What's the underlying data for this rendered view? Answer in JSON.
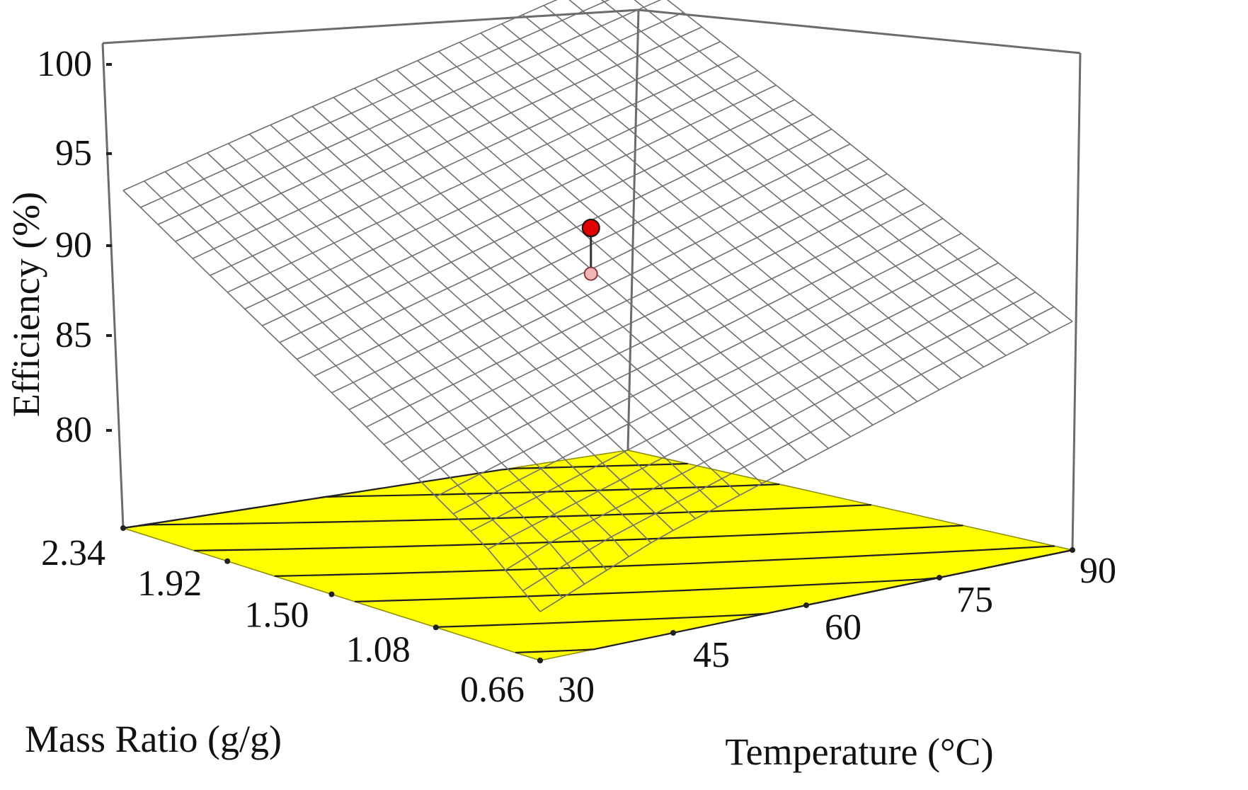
{
  "chart_data": {
    "type": "surface",
    "zlabel": "Efficiency (%)",
    "xlabel": "Temperature (°C)",
    "ylabel": "Mass Ratio (g/g)",
    "xlim": [
      30,
      90
    ],
    "ylim": [
      0.66,
      2.34
    ],
    "zlim": [
      80,
      100
    ],
    "x_ticks": [
      "30",
      "45",
      "60",
      "75",
      "90"
    ],
    "y_ticks": [
      "0.66",
      "1.08",
      "1.50",
      "1.92",
      "2.34"
    ],
    "z_ticks": [
      "80",
      "85",
      "90",
      "95",
      "100"
    ],
    "surface_corners": {
      "temperature_30_mass_ratio_0.66": 78,
      "temperature_30_mass_ratio_2.34": 93,
      "temperature_90_mass_ratio_0.66": 87,
      "temperature_90_mass_ratio_2.34": 101
    },
    "design_point": {
      "temperature": 60,
      "mass_ratio": 1.5,
      "predicted": 92,
      "actual": 89.5
    },
    "floor_contours": 8,
    "grid": true,
    "colors": {
      "floor": "#ffff00",
      "surface": "#ffffff",
      "grid": "#707070",
      "design_point": "#e00000",
      "actual_point": "#f2b6b6"
    }
  }
}
